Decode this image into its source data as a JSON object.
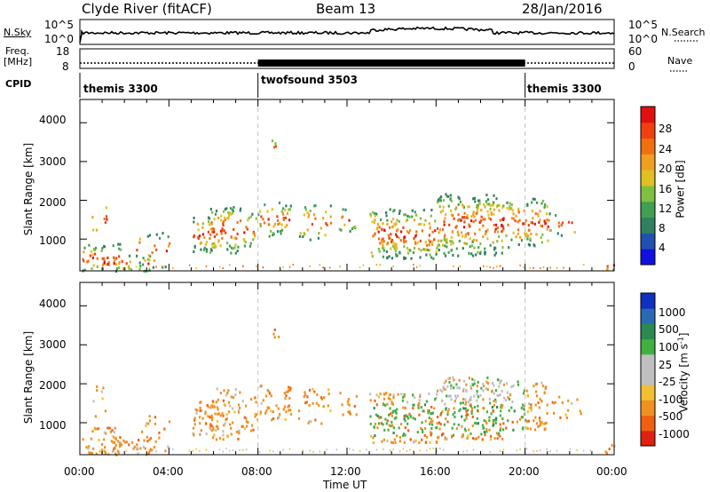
{
  "header": {
    "station": "Clyde River (fitACF)",
    "beam": "Beam 13",
    "date": "28/Jan/2016"
  },
  "strip_panels": {
    "nsky_label": "N.Sky",
    "nsearch_label": "N.Search",
    "nsky_ticks": [
      "10^5",
      "10^0"
    ],
    "nsearch_ticks": [
      "10^5",
      "10^0"
    ],
    "freq_label_line1": "Freq.",
    "freq_label_line2": "[MHz]",
    "freq_ticks": [
      "18",
      "8"
    ],
    "nave_label": "Nave",
    "nave_ticks": [
      "60",
      "0"
    ],
    "cpid_label": "CPID"
  },
  "cpid_segments": [
    {
      "name": "themis 3300",
      "start_h": 0,
      "end_h": 8
    },
    {
      "name": "twofsound 3503",
      "start_h": 8,
      "end_h": 20
    },
    {
      "name": "themis 3300",
      "start_h": 20,
      "end_h": 24
    }
  ],
  "colorbars": {
    "power": {
      "label": "Power [dB]",
      "ticks": [
        "4",
        "8",
        "12",
        "16",
        "20",
        "24",
        "28"
      ],
      "colors": [
        "#1010e0",
        "#2050b0",
        "#308060",
        "#40a050",
        "#80c040",
        "#e0c020",
        "#f0a020",
        "#f07010",
        "#f04010",
        "#e01010"
      ]
    },
    "velocity": {
      "label": "Velocity [m s",
      "label_sup": "-1",
      "label_end": "]",
      "ticks": [
        "1000",
        "500",
        "100",
        "25",
        "-25",
        "-100",
        "-500",
        "-1000"
      ],
      "colors": [
        "#1030c0",
        "#2a6ab0",
        "#2a8a50",
        "#40b040",
        "#bfbfbf",
        "#bfbfbf",
        "#f0c030",
        "#f09020",
        "#f06010",
        "#e02010"
      ]
    }
  },
  "chart_data": [
    {
      "type": "heatmap",
      "panel": "power",
      "ylabel": "Slant Range [km]",
      "yticks": [
        1000,
        2000,
        3000,
        4000
      ],
      "ylim": [
        180,
        4600
      ],
      "xlim_hours": [
        0,
        24
      ],
      "dashed_lines_hours": [
        8,
        20
      ]
    },
    {
      "type": "heatmap",
      "panel": "velocity",
      "ylabel": "Slant Range [km]",
      "yticks": [
        1000,
        2000,
        3000,
        4000
      ],
      "ylim": [
        180,
        4600
      ],
      "xlim_hours": [
        0,
        24
      ],
      "xlabel": "Time UT",
      "xticks": [
        "00:00",
        "04:00",
        "08:00",
        "12:00",
        "16:00",
        "20:00",
        "00:00"
      ]
    }
  ]
}
